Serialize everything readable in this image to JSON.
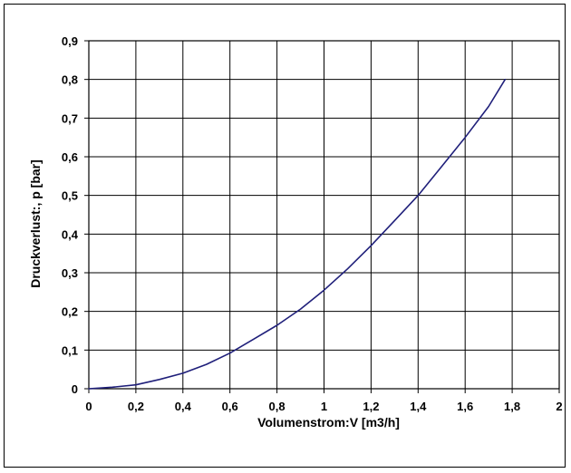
{
  "chart_data": {
    "type": "line",
    "title": "",
    "xlabel": "Volumenstrom:V [m3/h]",
    "ylabel": "Druckverlust:, p [bar]",
    "xlim": [
      0,
      2
    ],
    "ylim": [
      0,
      0.9
    ],
    "x_ticks": [
      "0",
      "0,2",
      "0,4",
      "0,6",
      "0,8",
      "1",
      "1,2",
      "1,4",
      "1,6",
      "1,8",
      "2"
    ],
    "y_ticks": [
      "0",
      "0,1",
      "0,2",
      "0,3",
      "0,4",
      "0,5",
      "0,6",
      "0,7",
      "0,8",
      "0,9"
    ],
    "grid": true,
    "legend": "none",
    "series_color": "#1f1f7a",
    "series": [
      {
        "x": [
          0,
          0.1,
          0.2,
          0.3,
          0.4,
          0.5,
          0.6,
          0.7,
          0.8,
          0.9,
          1.0,
          1.1,
          1.2,
          1.3,
          1.4,
          1.5,
          1.6,
          1.7,
          1.77
        ],
        "y": [
          0,
          0.004,
          0.01,
          0.024,
          0.04,
          0.063,
          0.092,
          0.128,
          0.164,
          0.206,
          0.255,
          0.31,
          0.37,
          0.435,
          0.5,
          0.575,
          0.65,
          0.73,
          0.8
        ]
      }
    ]
  }
}
